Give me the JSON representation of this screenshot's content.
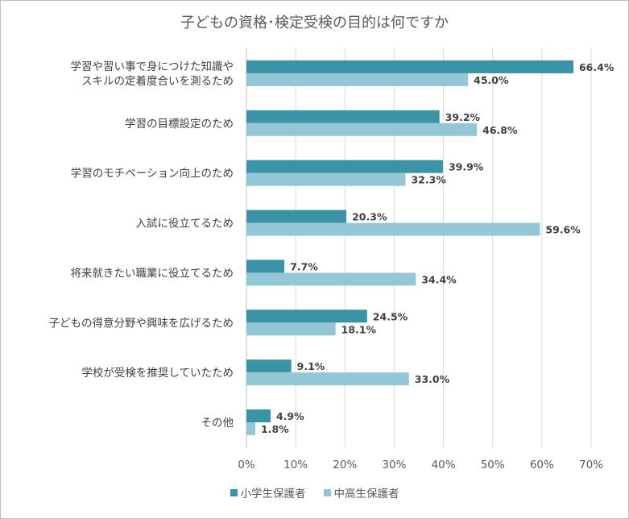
{
  "chart_data": {
    "type": "bar",
    "orientation": "horizontal",
    "title": "子どもの資格･検定受検の目的は何ですか",
    "categories": [
      [
        "学習や習い事で身につけた知識や",
        "スキルの定着度合いを測るため"
      ],
      [
        "学習の目標設定のため"
      ],
      [
        "学習のモチベーション向上のため"
      ],
      [
        "入試に役立てるため"
      ],
      [
        "将来就きたい職業に役立てるため"
      ],
      [
        "子どもの得意分野や興味を広げるため"
      ],
      [
        "学校が受検を推奨していたため"
      ],
      [
        "その他"
      ]
    ],
    "series": [
      {
        "name": "小学生保護者",
        "color": "#3a93a6",
        "values": [
          66.4,
          39.2,
          39.9,
          20.3,
          7.7,
          24.5,
          9.1,
          4.9
        ],
        "labels": [
          "66.4%",
          "39.2%",
          "39.9%",
          "20.3%",
          "7.7%",
          "24.5%",
          "9.1%",
          "4.9%"
        ]
      },
      {
        "name": "中高生保護者",
        "color": "#94c7d6",
        "values": [
          45.0,
          46.8,
          32.3,
          59.6,
          34.4,
          18.1,
          33.0,
          1.8
        ],
        "labels": [
          "45.0%",
          "46.8%",
          "32.3%",
          "59.6%",
          "34.4%",
          "18.1%",
          "33.0%",
          "1.8%"
        ]
      }
    ],
    "xlim": [
      0,
      70
    ],
    "xticks": [
      0,
      10,
      20,
      30,
      40,
      50,
      60,
      70
    ],
    "xtick_labels": [
      "0%",
      "10%",
      "20%",
      "30%",
      "40%",
      "50%",
      "60%",
      "70%"
    ],
    "grid": true,
    "legend": "bottom",
    "gridline_color": "#d9d9d9",
    "axis_color": "#bfbfbf"
  }
}
